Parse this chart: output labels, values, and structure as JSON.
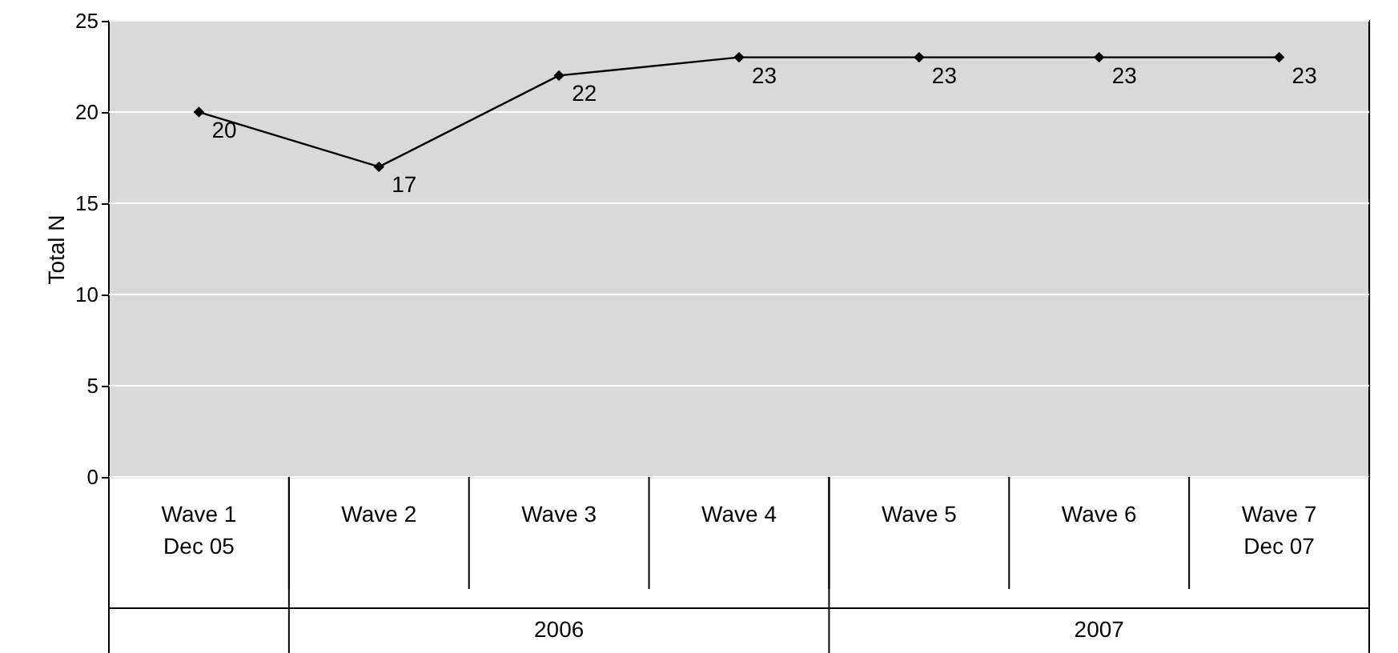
{
  "chart_data": {
    "type": "line",
    "ylabel": "Total N",
    "categories": [
      "Wave 1\nDec 05",
      "Wave 2",
      "Wave 3",
      "Wave 4",
      "Wave 5",
      "Wave 6",
      "Wave 7\nDec 07"
    ],
    "series": [
      {
        "color": "#000000",
        "values": [
          20,
          17,
          22,
          23,
          23,
          23,
          23
        ]
      }
    ],
    "ylim": [
      0,
      25
    ],
    "yticks": [
      0,
      5,
      10,
      15,
      20,
      25
    ],
    "grid": "y",
    "marker": "diamond",
    "line_style": "solid",
    "data_labels": true,
    "annotations": [
      "2006",
      "2007"
    ]
  }
}
